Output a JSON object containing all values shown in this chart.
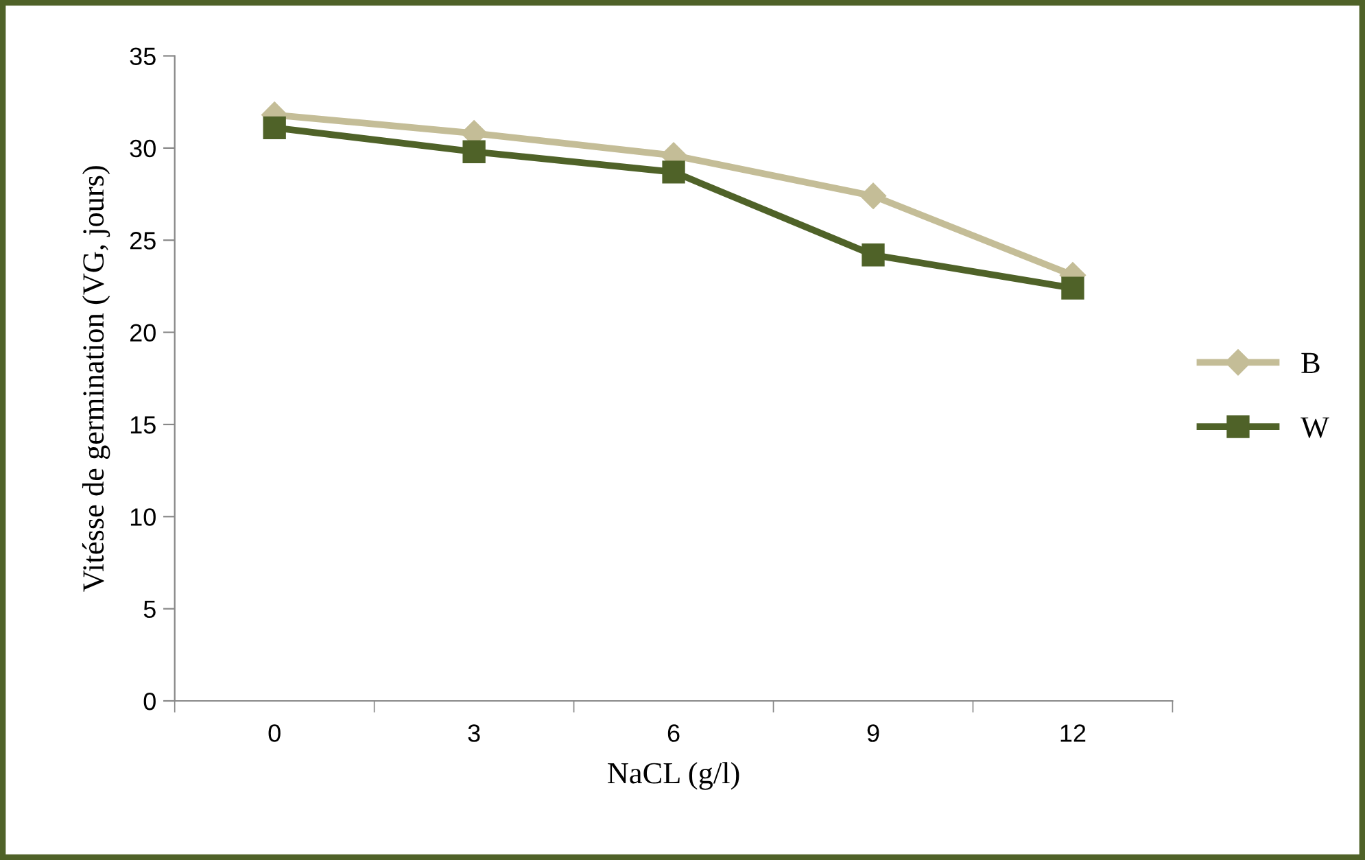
{
  "chart_data": {
    "type": "line",
    "xlabel": "NaCL (g/l)",
    "ylabel": "Vitésse de germination (VG, jours)",
    "categories": [
      "0",
      "3",
      "6",
      "9",
      "12"
    ],
    "series": [
      {
        "name": "B",
        "color": "#c4bd97",
        "marker": "diamond",
        "values": [
          31.8,
          30.8,
          29.6,
          27.4,
          23.1
        ]
      },
      {
        "name": "W",
        "color": "#4f6228",
        "marker": "square",
        "values": [
          31.1,
          29.8,
          28.7,
          24.2,
          22.4
        ]
      }
    ],
    "ylim": [
      0,
      35
    ],
    "yticks": [
      0,
      5,
      10,
      15,
      20,
      25,
      30,
      35
    ],
    "grid": false,
    "legend": "right",
    "line_style": "solid"
  }
}
